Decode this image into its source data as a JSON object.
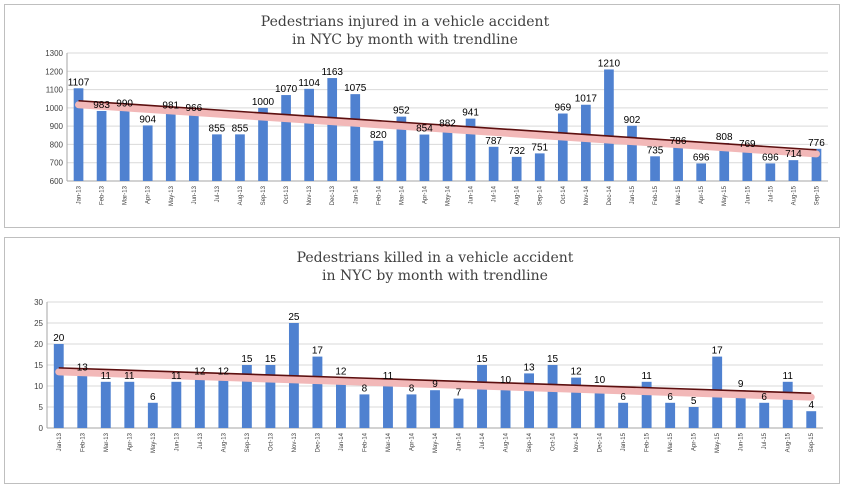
{
  "chart_data": [
    {
      "type": "bar",
      "title": "Pedestrians injured in a vehicle accident in NYC by month with trendline",
      "title_lines": [
        "Pedestrians injured in a vehicle accident",
        "in NYC by month with trendline"
      ],
      "categories": [
        "Jan-13",
        "Feb-13",
        "Mar-13",
        "Apr-13",
        "May-13",
        "Jun-13",
        "Jul-13",
        "Aug-13",
        "Sep-13",
        "Oct-13",
        "Nov-13",
        "Dec-13",
        "Jan-14",
        "Feb-14",
        "Mar-14",
        "Apr-14",
        "May-14",
        "Jun-14",
        "Jul-14",
        "Aug-14",
        "Sep-14",
        "Oct-14",
        "Nov-14",
        "Dec-14",
        "Jan-15",
        "Feb-15",
        "Mar-15",
        "Apr-15",
        "May-15",
        "Jun-15",
        "Jul-15",
        "Aug-15",
        "Sep-15"
      ],
      "values": [
        1107,
        983,
        990,
        904,
        981,
        966,
        855,
        855,
        1000,
        1070,
        1104,
        1163,
        1075,
        820,
        952,
        854,
        882,
        941,
        787,
        732,
        751,
        969,
        1017,
        1210,
        902,
        735,
        786,
        696,
        808,
        769,
        696,
        714,
        776
      ],
      "ylim": [
        600,
        1300
      ],
      "yticks": [
        600,
        700,
        800,
        900,
        1000,
        1100,
        1200,
        1300
      ],
      "trendline": {
        "type": "linear",
        "color": "#5c0f0f"
      },
      "colors": {
        "bar": "#4f81d0",
        "trend": "#5c0f0f",
        "band": "#f2b8b8"
      },
      "grid": true,
      "legend": "none"
    },
    {
      "type": "bar",
      "title": "Pedestrians killed in a vehicle accident in NYC  by month with trendline",
      "title_lines": [
        "Pedestrians killed in a vehicle accident",
        "in NYC  by month with trendline"
      ],
      "categories": [
        "Jan-13",
        "Feb-13",
        "Mar-13",
        "Apr-13",
        "May-13",
        "Jun-13",
        "Jul-13",
        "Aug-13",
        "Sep-13",
        "Oct-13",
        "Nov-13",
        "Dec-13",
        "Jan-14",
        "Feb-14",
        "Mar-14",
        "Apr-14",
        "May-14",
        "Jun-14",
        "Jul-14",
        "Aug-14",
        "Sep-14",
        "Oct-14",
        "Nov-14",
        "Dec-14",
        "Jan-15",
        "Feb-15",
        "Mar-15",
        "Apr-15",
        "May-15",
        "Jun-15",
        "Jul-15",
        "Aug-15",
        "Sep-15"
      ],
      "values": [
        20,
        13,
        11,
        11,
        6,
        11,
        12,
        12,
        15,
        15,
        25,
        17,
        12,
        8,
        11,
        8,
        9,
        7,
        15,
        10,
        13,
        15,
        12,
        10,
        6,
        11,
        6,
        5,
        17,
        9,
        6,
        11,
        4
      ],
      "ylim": [
        0,
        30
      ],
      "yticks": [
        0,
        5,
        10,
        15,
        20,
        25,
        30
      ],
      "trendline": {
        "type": "linear",
        "color": "#5c0f0f"
      },
      "colors": {
        "bar": "#4f81d0",
        "trend": "#5c0f0f",
        "band": "#f2b8b8"
      },
      "grid": true,
      "legend": "none"
    }
  ]
}
